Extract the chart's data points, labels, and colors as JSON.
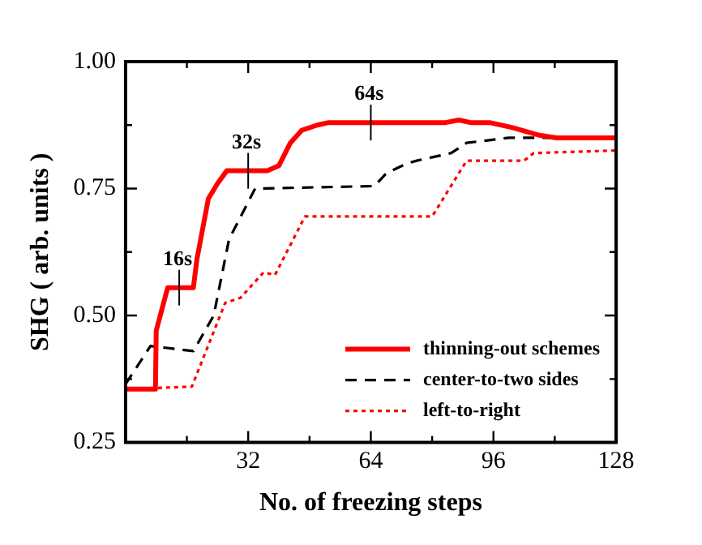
{
  "chart_data": {
    "type": "line",
    "xlabel": "No. of freezing steps",
    "ylabel": "SHG ( arb. units )",
    "xlim": [
      0,
      128
    ],
    "xticks": [
      {
        "value": 16,
        "label": null
      },
      32,
      {
        "value": 48,
        "label": null
      },
      64,
      {
        "value": 80,
        "label": null
      },
      96,
      {
        "value": 112,
        "label": null
      },
      128
    ],
    "ylim": [
      0.25,
      1.0
    ],
    "yticks": [
      {
        "value": 0.25,
        "label": "0.25"
      },
      {
        "value": 0.375,
        "label": null
      },
      {
        "value": 0.5,
        "label": "0.50"
      },
      {
        "value": 0.625,
        "label": null
      },
      {
        "value": 0.75,
        "label": "0.75"
      },
      {
        "value": 0.875,
        "label": null
      },
      {
        "value": 1.0,
        "label": "1.00"
      }
    ],
    "grid": false,
    "legend": "bottom right",
    "marker": "none",
    "annotations": [
      {
        "text": "16s",
        "x": 14,
        "y": 0.555
      },
      {
        "text": "32s",
        "x": 32,
        "y": 0.785
      },
      {
        "text": "64s",
        "x": 64,
        "y": 0.88
      }
    ],
    "series": [
      {
        "name": "thinning-out schemes",
        "color": "#ff0000",
        "line_style": "solid",
        "x": [
          0,
          7.8,
          8,
          11,
          17.7,
          18.6,
          21.6,
          24,
          26.4,
          37,
          40,
          43,
          46,
          50,
          53,
          83.5,
          87,
          90,
          95,
          101,
          108,
          112.5,
          128
        ],
        "values": [
          0.355,
          0.355,
          0.47,
          0.555,
          0.555,
          0.61,
          0.73,
          0.76,
          0.785,
          0.785,
          0.795,
          0.84,
          0.865,
          0.875,
          0.88,
          0.88,
          0.885,
          0.88,
          0.88,
          0.87,
          0.855,
          0.85,
          0.85
        ]
      },
      {
        "name": "center-to-two sides",
        "color": "#000000",
        "line_style": "dashed",
        "x": [
          0,
          6.5,
          17.7,
          23,
          27,
          33.8,
          65,
          68,
          73.6,
          76,
          85,
          89,
          100,
          128
        ],
        "values": [
          0.365,
          0.44,
          0.43,
          0.5,
          0.65,
          0.75,
          0.755,
          0.78,
          0.8,
          0.805,
          0.82,
          0.84,
          0.85,
          0.85
        ]
      },
      {
        "name": "left-to-right",
        "color": "#ff0000",
        "line_style": "dotted",
        "x": [
          0,
          17.3,
          26,
          30,
          36,
          39,
          46.8,
          80,
          89,
          104,
          106.5,
          128
        ],
        "values": [
          0.355,
          0.36,
          0.525,
          0.535,
          0.585,
          0.58,
          0.695,
          0.695,
          0.805,
          0.805,
          0.82,
          0.825
        ]
      }
    ]
  }
}
